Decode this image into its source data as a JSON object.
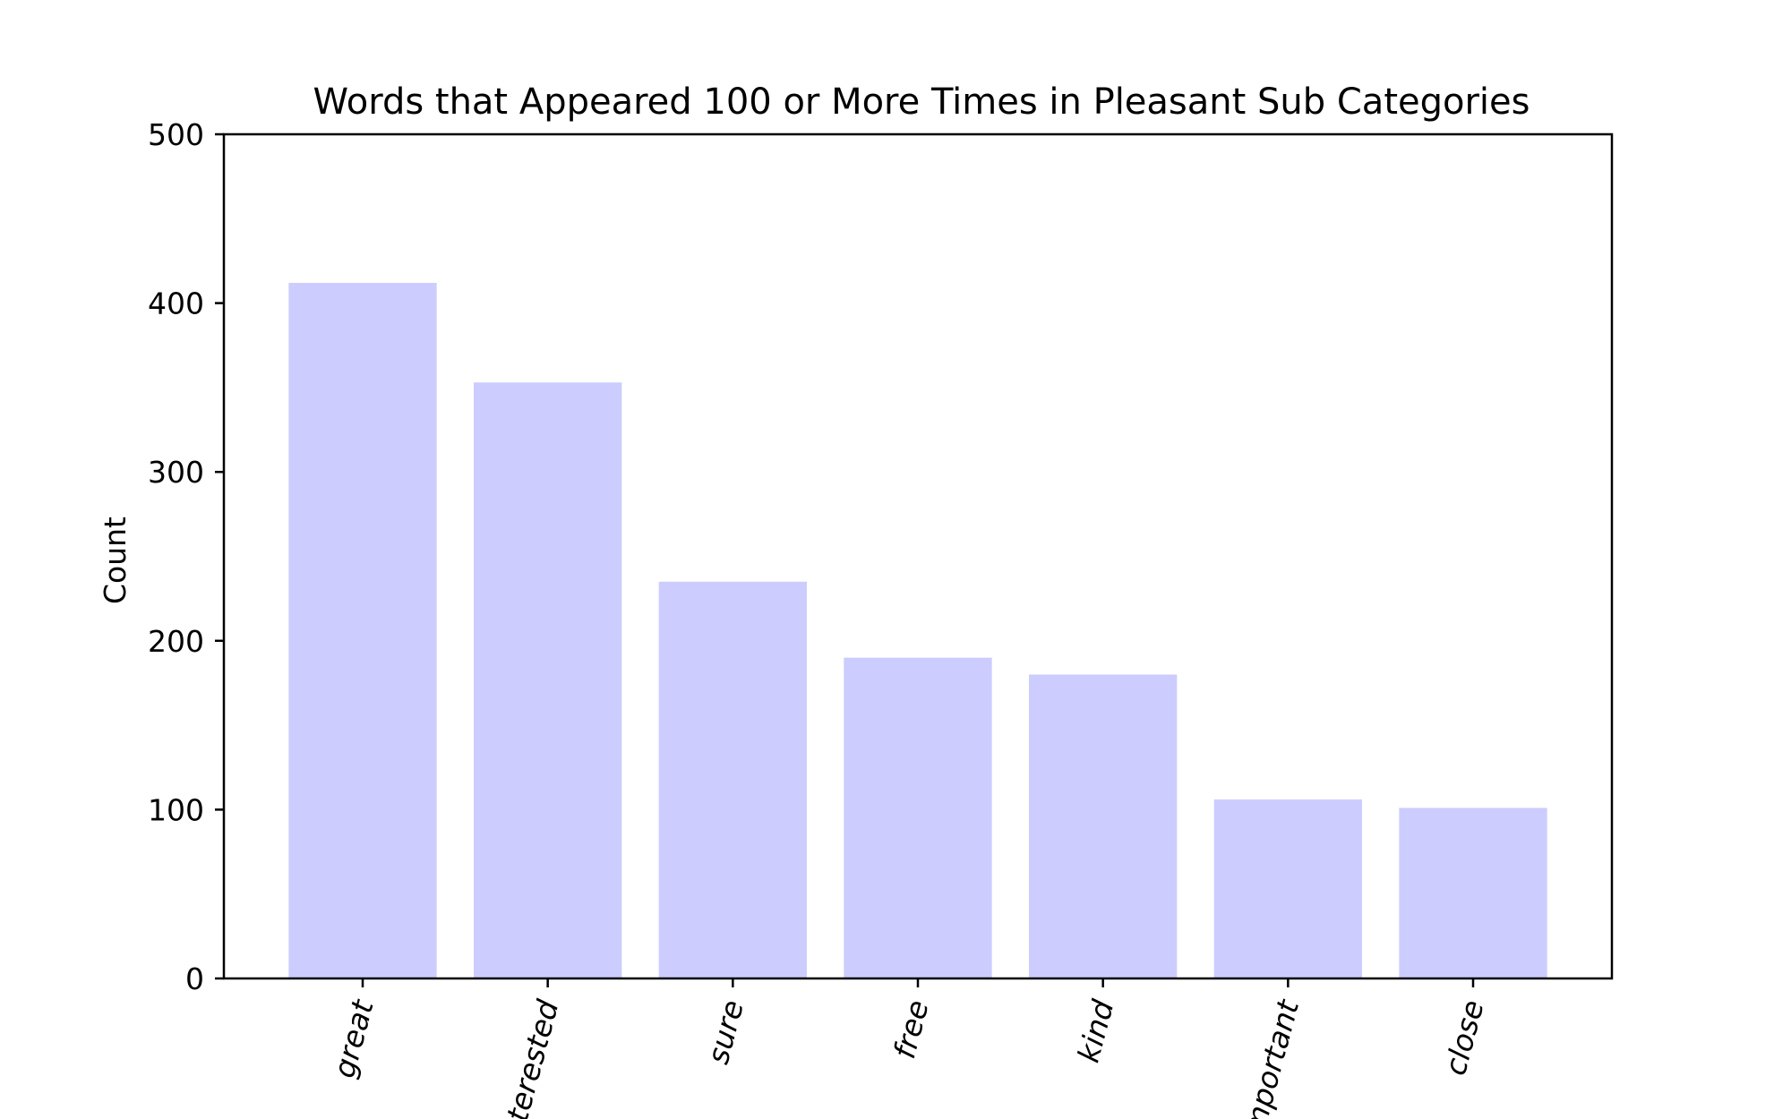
{
  "chart_data": {
    "type": "bar",
    "title": "Words that Appeared 100 or More Times in Pleasant Sub Categories",
    "xlabel": "",
    "ylabel": "Count",
    "categories": [
      "great",
      "interested",
      "sure",
      "free",
      "kind",
      "important",
      "close"
    ],
    "values": [
      412,
      353,
      235,
      190,
      180,
      106,
      101
    ],
    "ylim": [
      0,
      500
    ],
    "yticks": [
      0,
      100,
      200,
      300,
      400,
      500
    ],
    "bar_color": "#ccccff",
    "grid": false,
    "legend": "none"
  }
}
